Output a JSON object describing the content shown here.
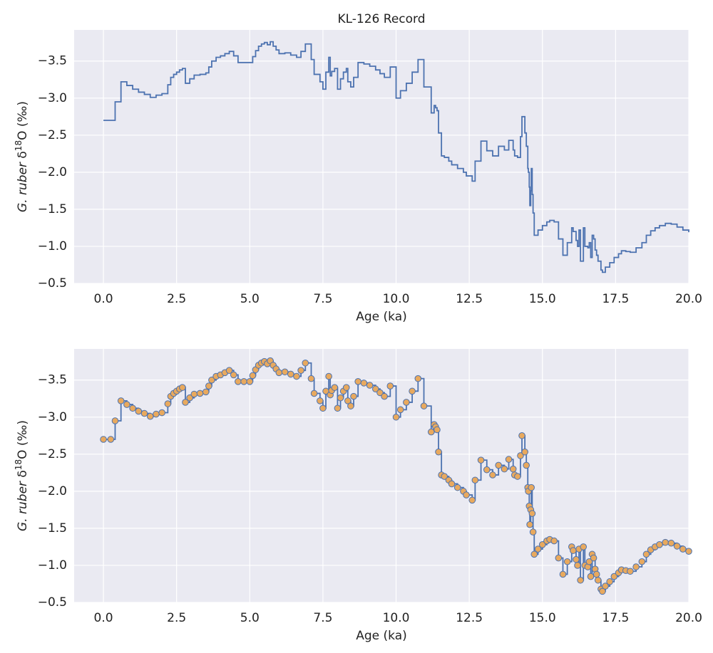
{
  "chart_data": [
    {
      "type": "line",
      "drawstyle": "steps-post",
      "title": "KL-126 Record",
      "xlabel": "Age (ka)",
      "ylabel": [
        "G. ruber",
        " δ",
        "18",
        "O (‰)"
      ],
      "color": "#4c72b0",
      "grid": true,
      "xlim": [
        -1,
        20
      ],
      "ylim": [
        -0.5,
        -3.92
      ],
      "xticks": [
        {
          "value": 0,
          "label": "0.0"
        },
        {
          "value": 2.5,
          "label": "2.5"
        },
        {
          "value": 5,
          "label": "5.0"
        },
        {
          "value": 7.5,
          "label": "7.5"
        },
        {
          "value": 10,
          "label": "10.0"
        },
        {
          "value": 12.5,
          "label": "12.5"
        },
        {
          "value": 15,
          "label": "15.0"
        },
        {
          "value": 17.5,
          "label": "17.5"
        },
        {
          "value": 20,
          "label": "20.0"
        }
      ],
      "yticks": [
        {
          "value": -3.5,
          "label": "−3.5"
        },
        {
          "value": -3,
          "label": "−3.0"
        },
        {
          "value": -2.5,
          "label": "−2.5"
        },
        {
          "value": -2,
          "label": "−2.0"
        },
        {
          "value": -1.5,
          "label": "−1.5"
        },
        {
          "value": -1,
          "label": "−1.0"
        },
        {
          "value": -0.5,
          "label": "−0.5"
        }
      ],
      "x": [
        0,
        0.25,
        0.4,
        0.6,
        0.8,
        1.0,
        1.2,
        1.4,
        1.6,
        1.8,
        2.0,
        2.2,
        2.3,
        2.4,
        2.5,
        2.6,
        2.7,
        2.8,
        2.95,
        3.1,
        3.3,
        3.5,
        3.6,
        3.7,
        3.85,
        4.0,
        4.15,
        4.3,
        4.45,
        4.6,
        4.8,
        5.0,
        5.1,
        5.2,
        5.3,
        5.4,
        5.5,
        5.6,
        5.7,
        5.8,
        5.9,
        6.0,
        6.2,
        6.4,
        6.6,
        6.75,
        6.9,
        7.1,
        7.2,
        7.4,
        7.5,
        7.6,
        7.7,
        7.75,
        7.8,
        7.9,
        8.0,
        8.1,
        8.2,
        8.3,
        8.35,
        8.45,
        8.55,
        8.7,
        8.9,
        9.1,
        9.3,
        9.45,
        9.6,
        9.8,
        10.0,
        10.15,
        10.35,
        10.55,
        10.75,
        10.95,
        11.2,
        11.3,
        11.35,
        11.4,
        11.45,
        11.55,
        11.65,
        11.8,
        11.9,
        12.1,
        12.3,
        12.4,
        12.6,
        12.7,
        12.9,
        13.1,
        13.3,
        13.5,
        13.7,
        13.85,
        14.0,
        14.05,
        14.15,
        14.25,
        14.3,
        14.4,
        14.45,
        14.5,
        14.52,
        14.55,
        14.57,
        14.6,
        14.62,
        14.65,
        14.68,
        14.72,
        14.85,
        15.0,
        15.15,
        15.25,
        15.4,
        15.55,
        15.7,
        15.85,
        16.0,
        16.05,
        16.15,
        16.2,
        16.25,
        16.3,
        16.4,
        16.45,
        16.55,
        16.6,
        16.65,
        16.7,
        16.75,
        16.8,
        16.85,
        16.9,
        17.0,
        17.05,
        17.15,
        17.3,
        17.45,
        17.6,
        17.7,
        17.85,
        18.0,
        18.2,
        18.4,
        18.55,
        18.7,
        18.85,
        19.0,
        19.2,
        19.4,
        19.6,
        19.8,
        20.0
      ],
      "values": [
        -2.7,
        -2.7,
        -2.95,
        -3.22,
        -3.17,
        -3.12,
        -3.08,
        -3.05,
        -3.01,
        -3.04,
        -3.06,
        -3.18,
        -3.28,
        -3.32,
        -3.35,
        -3.38,
        -3.4,
        -3.2,
        -3.26,
        -3.31,
        -3.32,
        -3.34,
        -3.42,
        -3.5,
        -3.55,
        -3.57,
        -3.6,
        -3.63,
        -3.57,
        -3.48,
        -3.48,
        -3.48,
        -3.56,
        -3.64,
        -3.7,
        -3.73,
        -3.75,
        -3.72,
        -3.76,
        -3.7,
        -3.65,
        -3.6,
        -3.61,
        -3.58,
        -3.55,
        -3.63,
        -3.73,
        -3.52,
        -3.32,
        -3.22,
        -3.12,
        -3.35,
        -3.55,
        -3.3,
        -3.36,
        -3.4,
        -3.12,
        -3.26,
        -3.35,
        -3.4,
        -3.22,
        -3.15,
        -3.28,
        -3.48,
        -3.46,
        -3.43,
        -3.38,
        -3.33,
        -3.28,
        -3.42,
        -3.0,
        -3.1,
        -3.2,
        -3.35,
        -3.52,
        -3.15,
        -2.8,
        -2.9,
        -2.87,
        -2.83,
        -2.53,
        -2.22,
        -2.2,
        -2.15,
        -2.1,
        -2.05,
        -2.0,
        -1.95,
        -1.88,
        -2.15,
        -2.42,
        -2.29,
        -2.22,
        -2.35,
        -2.3,
        -2.43,
        -2.3,
        -2.22,
        -2.2,
        -2.48,
        -2.75,
        -2.53,
        -2.35,
        -2.05,
        -2.0,
        -1.8,
        -1.55,
        -1.75,
        -2.05,
        -1.7,
        -1.45,
        -1.15,
        -1.22,
        -1.28,
        -1.33,
        -1.35,
        -1.33,
        -1.1,
        -0.88,
        -1.05,
        -1.25,
        -1.2,
        -1.08,
        -1.0,
        -1.22,
        -0.8,
        -1.25,
        -1.0,
        -0.98,
        -1.05,
        -0.85,
        -1.15,
        -1.1,
        -0.95,
        -0.88,
        -0.8,
        -0.68,
        -0.65,
        -0.72,
        -0.78,
        -0.85,
        -0.9,
        -0.94,
        -0.93,
        -0.92,
        -0.98,
        -1.05,
        -1.15,
        -1.21,
        -1.25,
        -1.28,
        -1.31,
        -1.3,
        -1.26,
        -1.22,
        -1.19
      ]
    },
    {
      "type": "line",
      "drawstyle": "steps-post",
      "markers": true,
      "marker_color": "#e8a95e",
      "xlabel": "Age (ka)",
      "ylabel": [
        "G. ruber",
        " δ",
        "18",
        "O (‰)"
      ],
      "color": "#4c72b0",
      "grid": true,
      "xlim": [
        -1,
        20
      ],
      "ylim": [
        -0.5,
        -3.92
      ],
      "xticks": [
        {
          "value": 0,
          "label": "0.0"
        },
        {
          "value": 2.5,
          "label": "2.5"
        },
        {
          "value": 5,
          "label": "5.0"
        },
        {
          "value": 7.5,
          "label": "7.5"
        },
        {
          "value": 10,
          "label": "10.0"
        },
        {
          "value": 12.5,
          "label": "12.5"
        },
        {
          "value": 15,
          "label": "15.0"
        },
        {
          "value": 17.5,
          "label": "17.5"
        },
        {
          "value": 20,
          "label": "20.0"
        }
      ],
      "yticks": [
        {
          "value": -3.5,
          "label": "−3.5"
        },
        {
          "value": -3,
          "label": "−3.0"
        },
        {
          "value": -2.5,
          "label": "−2.5"
        },
        {
          "value": -2,
          "label": "−2.0"
        },
        {
          "value": -1.5,
          "label": "−1.5"
        },
        {
          "value": -1,
          "label": "−1.0"
        },
        {
          "value": -0.5,
          "label": "−0.5"
        }
      ],
      "x": [
        0,
        0.25,
        0.4,
        0.6,
        0.8,
        1.0,
        1.2,
        1.4,
        1.6,
        1.8,
        2.0,
        2.2,
        2.3,
        2.4,
        2.5,
        2.6,
        2.7,
        2.8,
        2.95,
        3.1,
        3.3,
        3.5,
        3.6,
        3.7,
        3.85,
        4.0,
        4.15,
        4.3,
        4.45,
        4.6,
        4.8,
        5.0,
        5.1,
        5.2,
        5.3,
        5.4,
        5.5,
        5.6,
        5.7,
        5.8,
        5.9,
        6.0,
        6.2,
        6.4,
        6.6,
        6.75,
        6.9,
        7.1,
        7.2,
        7.4,
        7.5,
        7.6,
        7.7,
        7.75,
        7.8,
        7.9,
        8.0,
        8.1,
        8.2,
        8.3,
        8.35,
        8.45,
        8.55,
        8.7,
        8.9,
        9.1,
        9.3,
        9.45,
        9.6,
        9.8,
        10.0,
        10.15,
        10.35,
        10.55,
        10.75,
        10.95,
        11.2,
        11.3,
        11.35,
        11.4,
        11.45,
        11.55,
        11.65,
        11.8,
        11.9,
        12.1,
        12.3,
        12.4,
        12.6,
        12.7,
        12.9,
        13.1,
        13.3,
        13.5,
        13.7,
        13.85,
        14.0,
        14.05,
        14.15,
        14.25,
        14.3,
        14.4,
        14.45,
        14.5,
        14.52,
        14.55,
        14.57,
        14.6,
        14.62,
        14.65,
        14.68,
        14.72,
        14.85,
        15.0,
        15.15,
        15.25,
        15.4,
        15.55,
        15.7,
        15.85,
        16.0,
        16.05,
        16.15,
        16.2,
        16.25,
        16.3,
        16.4,
        16.45,
        16.55,
        16.6,
        16.65,
        16.7,
        16.75,
        16.8,
        16.85,
        16.9,
        17.0,
        17.05,
        17.15,
        17.3,
        17.45,
        17.6,
        17.7,
        17.85,
        18.0,
        18.2,
        18.4,
        18.55,
        18.7,
        18.85,
        19.0,
        19.2,
        19.4,
        19.6,
        19.8,
        20.0
      ],
      "values": [
        -2.7,
        -2.7,
        -2.95,
        -3.22,
        -3.17,
        -3.12,
        -3.08,
        -3.05,
        -3.01,
        -3.04,
        -3.06,
        -3.18,
        -3.28,
        -3.32,
        -3.35,
        -3.38,
        -3.4,
        -3.2,
        -3.26,
        -3.31,
        -3.32,
        -3.34,
        -3.42,
        -3.5,
        -3.55,
        -3.57,
        -3.6,
        -3.63,
        -3.57,
        -3.48,
        -3.48,
        -3.48,
        -3.56,
        -3.64,
        -3.7,
        -3.73,
        -3.75,
        -3.72,
        -3.76,
        -3.7,
        -3.65,
        -3.6,
        -3.61,
        -3.58,
        -3.55,
        -3.63,
        -3.73,
        -3.52,
        -3.32,
        -3.22,
        -3.12,
        -3.35,
        -3.55,
        -3.3,
        -3.36,
        -3.4,
        -3.12,
        -3.26,
        -3.35,
        -3.4,
        -3.22,
        -3.15,
        -3.28,
        -3.48,
        -3.46,
        -3.43,
        -3.38,
        -3.33,
        -3.28,
        -3.42,
        -3.0,
        -3.1,
        -3.2,
        -3.35,
        -3.52,
        -3.15,
        -2.8,
        -2.9,
        -2.87,
        -2.83,
        -2.53,
        -2.22,
        -2.2,
        -2.15,
        -2.1,
        -2.05,
        -2.0,
        -1.95,
        -1.88,
        -2.15,
        -2.42,
        -2.29,
        -2.22,
        -2.35,
        -2.3,
        -2.43,
        -2.3,
        -2.22,
        -2.2,
        -2.48,
        -2.75,
        -2.53,
        -2.35,
        -2.05,
        -2.0,
        -1.8,
        -1.55,
        -1.75,
        -2.05,
        -1.7,
        -1.45,
        -1.15,
        -1.22,
        -1.28,
        -1.33,
        -1.35,
        -1.33,
        -1.1,
        -0.88,
        -1.05,
        -1.25,
        -1.2,
        -1.08,
        -1.0,
        -1.22,
        -0.8,
        -1.25,
        -1.0,
        -0.98,
        -1.05,
        -0.85,
        -1.15,
        -1.1,
        -0.95,
        -0.88,
        -0.8,
        -0.68,
        -0.65,
        -0.72,
        -0.78,
        -0.85,
        -0.9,
        -0.94,
        -0.93,
        -0.92,
        -0.98,
        -1.05,
        -1.15,
        -1.21,
        -1.25,
        -1.28,
        -1.31,
        -1.3,
        -1.26,
        -1.22,
        -1.19
      ]
    }
  ]
}
